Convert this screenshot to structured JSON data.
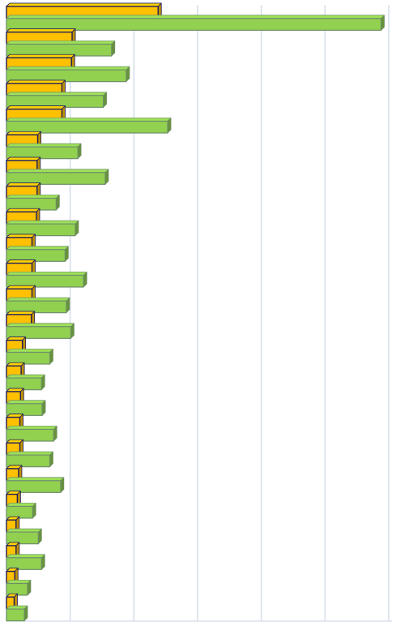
{
  "chart_data": {
    "type": "bar",
    "orientation": "horizontal",
    "style": "3d",
    "grid": true,
    "xlim": [
      0,
      600
    ],
    "x_gridlines": [
      0,
      100,
      200,
      300,
      400,
      500,
      600
    ],
    "title": "",
    "xlabel": "",
    "ylabel": "",
    "categories": [
      "",
      "",
      "",
      "",
      "",
      "",
      "",
      "",
      "",
      "",
      "",
      "",
      "",
      "",
      "",
      "",
      "",
      "",
      "",
      "",
      "",
      "",
      "",
      ""
    ],
    "series": [
      {
        "color": "#FFC000",
        "values": [
          238,
          103,
          102,
          87,
          87,
          49,
          48,
          48,
          47,
          40,
          40,
          40,
          39,
          25,
          23,
          22,
          21,
          21,
          19,
          17,
          15,
          15,
          13,
          12
        ]
      },
      {
        "color": "#92D050",
        "values": [
          588,
          165,
          188,
          152,
          253,
          112,
          155,
          78,
          108,
          92,
          121,
          94,
          101,
          68,
          55,
          56,
          74,
          68,
          85,
          41,
          50,
          55,
          33,
          28
        ]
      }
    ]
  }
}
